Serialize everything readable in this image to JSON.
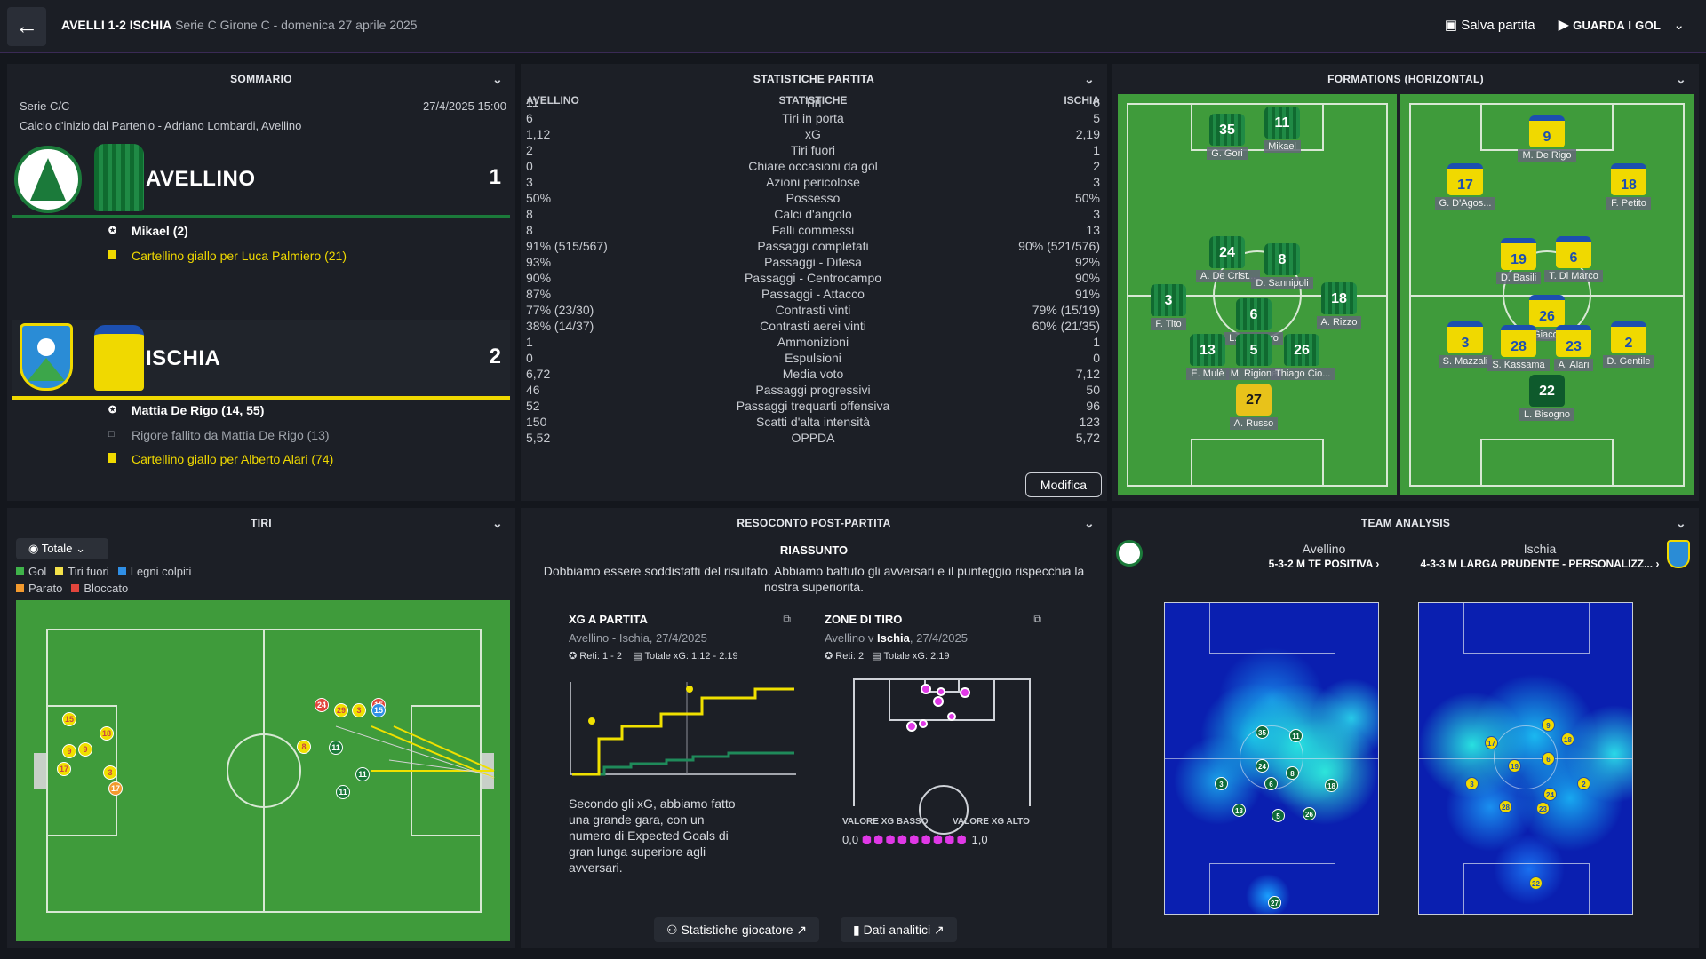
{
  "topbar": {
    "title_strong": "AVELLI 1-2 ISCHIA",
    "title_rest": "Serie C Girone C - domenica 27 aprile 2025",
    "save_label": "Salva partita",
    "watch_label": "GUARDA I GOL"
  },
  "summary": {
    "header": "SOMMARIO",
    "competition": "Serie C/C",
    "datetime": "27/4/2025 15:00",
    "venue": "Calcio d'inizio dal Partenio - Adriano Lombardi, Avellino",
    "home": {
      "name": "AVELLINO",
      "score": "1",
      "color": "#1b7a3a",
      "events": [
        {
          "icon": "ball-icon",
          "text": "Mikael (2)",
          "type": "goal"
        },
        {
          "icon": "yellow-card-icon",
          "text": "Cartellino giallo per Luca Palmiero (21)",
          "type": "card"
        }
      ]
    },
    "away": {
      "name": "ISCHIA",
      "score": "2",
      "color": "#f0d900",
      "events": [
        {
          "icon": "ball-icon",
          "text": "Mattia De Rigo (14, 55)",
          "type": "goal"
        },
        {
          "icon": "missed-penalty-icon",
          "text": "Rigore fallito da Mattia De Rigo (13)",
          "type": "miss"
        },
        {
          "icon": "yellow-card-icon",
          "text": "Cartellino giallo per Alberto Alari (74)",
          "type": "card"
        }
      ]
    }
  },
  "stats": {
    "header": "STATISTICHE PARTITA",
    "col_home": "AVELLINO",
    "col_mid": "STATISTICHE",
    "col_away": "ISCHIA",
    "rows": [
      [
        "11",
        "Tiri",
        "8"
      ],
      [
        "6",
        "Tiri in porta",
        "5"
      ],
      [
        "1,12",
        "xG",
        "2,19"
      ],
      [
        "2",
        "Tiri fuori",
        "1"
      ],
      [
        "0",
        "Chiare occasioni da gol",
        "2"
      ],
      [
        "3",
        "Azioni pericolose",
        "3"
      ],
      [
        "50%",
        "Possesso",
        "50%"
      ],
      [
        "8",
        "Calci d'angolo",
        "3"
      ],
      [
        "8",
        "Falli commessi",
        "13"
      ],
      [
        "91% (515/567)",
        "Passaggi completati",
        "90% (521/576)"
      ],
      [
        "93%",
        "Passaggi - Difesa",
        "92%"
      ],
      [
        "90%",
        "Passaggi - Centrocampo",
        "90%"
      ],
      [
        "87%",
        "Passaggi - Attacco",
        "91%"
      ],
      [
        "77% (23/30)",
        "Contrasti vinti",
        "79% (15/19)"
      ],
      [
        "38% (14/37)",
        "Contrasti aerei vinti",
        "60% (21/35)"
      ],
      [
        "1",
        "Ammonizioni",
        "1"
      ],
      [
        "0",
        "Espulsioni",
        "0"
      ],
      [
        "6,72",
        "Media voto",
        "7,12"
      ],
      [
        "46",
        "Passaggi progressivi",
        "50"
      ],
      [
        "52",
        "Passaggi trequarti offensiva",
        "96"
      ],
      [
        "150",
        "Scatti d'alta intensità",
        "123"
      ],
      [
        "5,52",
        "OPPDA",
        "5,72"
      ]
    ],
    "edit_label": "Modifica"
  },
  "formations": {
    "header": "FORMATIONS (HORIZONTAL)",
    "home_players": [
      {
        "num": "35",
        "name": "G. Gori"
      },
      {
        "num": "11",
        "name": "Mikael"
      },
      {
        "num": "24",
        "name": "A. De Crist..."
      },
      {
        "num": "8",
        "name": "D. Sannipoli"
      },
      {
        "num": "3",
        "name": "F. Tito"
      },
      {
        "num": "6",
        "name": "L. Palmiero"
      },
      {
        "num": "18",
        "name": "A. Rizzo"
      },
      {
        "num": "13",
        "name": "E. Mulè"
      },
      {
        "num": "5",
        "name": "M. Rigione"
      },
      {
        "num": "26",
        "name": "Thiago Cio..."
      },
      {
        "num": "27",
        "name": "A. Russo"
      }
    ],
    "away_players": [
      {
        "num": "9",
        "name": "M. De Rigo"
      },
      {
        "num": "17",
        "name": "G. D'Agos..."
      },
      {
        "num": "18",
        "name": "F. Petito"
      },
      {
        "num": "19",
        "name": "D. Basili"
      },
      {
        "num": "6",
        "name": "T. Di Marco"
      },
      {
        "num": "26",
        "name": "D. Giacom..."
      },
      {
        "num": "3",
        "name": "S. Mazzali"
      },
      {
        "num": "28",
        "name": "S. Kassama"
      },
      {
        "num": "23",
        "name": "A. Alari"
      },
      {
        "num": "2",
        "name": "D. Gentile"
      },
      {
        "num": "22",
        "name": "L. Bisogno"
      }
    ]
  },
  "shots": {
    "header": "TIRI",
    "filter": "Totale",
    "legend": [
      {
        "label": "Gol",
        "color": "#3fb34a"
      },
      {
        "label": "Tiri fuori",
        "color": "#f3e14a"
      },
      {
        "label": "Legni colpiti",
        "color": "#2f8fe6"
      },
      {
        "label": "Parato",
        "color": "#f39a2e"
      },
      {
        "label": "Bloccato",
        "color": "#e2453c"
      }
    ],
    "home_markers": [
      "15",
      "18",
      "9",
      "9",
      "17",
      "3",
      "17"
    ],
    "away_markers": [
      "24",
      "29",
      "3",
      "15",
      "15",
      "8",
      "11",
      "11",
      "11"
    ]
  },
  "report": {
    "header": "RESOCONTO POST-PARTITA",
    "summary_title": "RIASSUNTO",
    "summary_text": "Dobbiamo essere soddisfatti del risultato. Abbiamo battuto gli avversari e il punteggio rispecchia la nostra superiorità.",
    "xg_title": "XG A PARTITA",
    "xg_sub": "Avellino - Ischia, 27/4/2025",
    "xg_goals": "Reti: 1 - 2",
    "xg_total": "Totale xG: 1.12 - 2.19",
    "xg_text": "Secondo gli xG, abbiamo fatto una grande gara, con un numero di Expected Goals di gran lunga superiore agli avversari.",
    "zone_title": "ZONE DI TIRO",
    "zone_sub_a": "Avellino v",
    "zone_sub_b": "Ischia",
    "zone_sub_c": ", 27/4/2025",
    "zone_goals": "Reti: 2",
    "zone_total": "Totale xG: 2.19",
    "xg_low": "VALORE XG BASSO",
    "xg_high": "VALORE XG ALTO",
    "scale_min": "0,0",
    "scale_max": "1,0",
    "player_stats_btn": "Statistiche giocatore",
    "analytics_btn": "Dati analitici"
  },
  "analysis": {
    "header": "TEAM ANALYSIS",
    "home_team": "Avellino",
    "home_formation": "5-3-2 M TF POSITIVA",
    "away_team": "Ischia",
    "away_formation": "4-3-3 M LARGA PRUDENTE - PERSONALIZZ...",
    "home_heat": [
      "35",
      "11",
      "24",
      "8",
      "3",
      "6",
      "18",
      "13",
      "5",
      "26",
      "27"
    ],
    "away_heat": [
      "9",
      "17",
      "18",
      "19",
      "6",
      "3",
      "24",
      "2",
      "28",
      "23",
      "22"
    ]
  },
  "colors": {
    "home": "#1b7a3a",
    "away": "#f0d900",
    "accent": "#6a3fa5"
  }
}
